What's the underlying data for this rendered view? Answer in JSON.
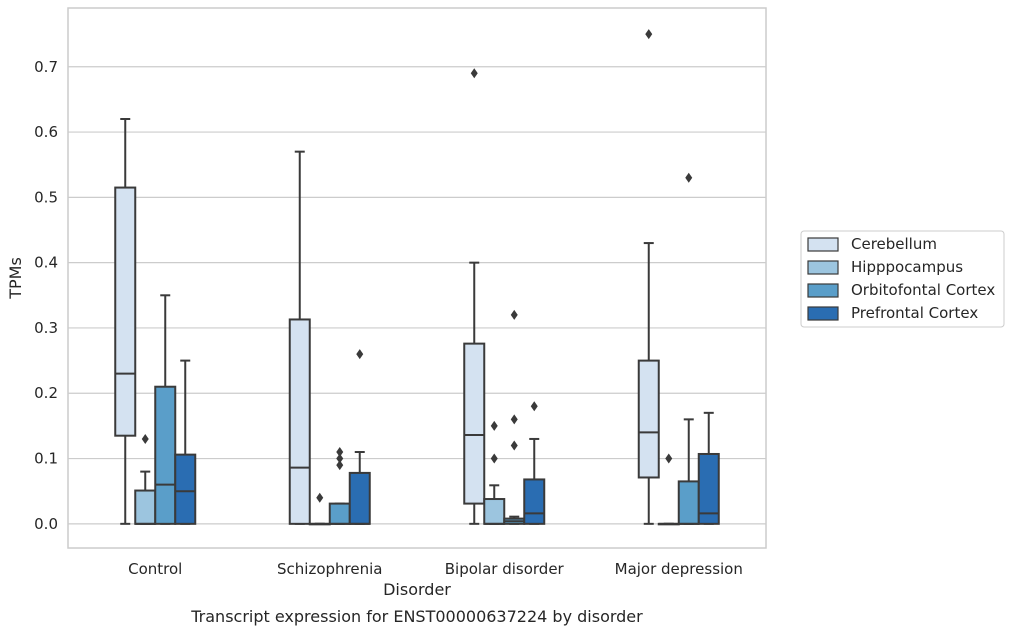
{
  "caption": "Transcript expression for ENST00000637224 by disorder",
  "chart_data": {
    "type": "boxplot",
    "xlabel": "Disorder",
    "ylabel": "TPMs",
    "ylim": [
      -0.037,
      0.79
    ],
    "yticks": [
      0.0,
      0.1,
      0.2,
      0.3,
      0.4,
      0.5,
      0.6,
      0.7
    ],
    "ytick_labels": [
      "0.0",
      "0.1",
      "0.2",
      "0.3",
      "0.4",
      "0.5",
      "0.6",
      "0.7"
    ],
    "grid": "horizontal",
    "legend_position": "right-outside",
    "categories": [
      "Control",
      "Schizophrenia",
      "Bipolar disorder",
      "Major depression"
    ],
    "series": [
      {
        "name": "Cerebellum",
        "color": "#d4e2f1",
        "boxes": [
          {
            "whislo": 0.0,
            "q1": 0.135,
            "med": 0.23,
            "q3": 0.515,
            "whishi": 0.62,
            "fliers": []
          },
          {
            "whislo": 0.0,
            "q1": 0.0,
            "med": 0.086,
            "q3": 0.313,
            "whishi": 0.57,
            "fliers": []
          },
          {
            "whislo": 0.0,
            "q1": 0.031,
            "med": 0.136,
            "q3": 0.276,
            "whishi": 0.4,
            "fliers": [
              0.69
            ]
          },
          {
            "whislo": 0.0,
            "q1": 0.071,
            "med": 0.14,
            "q3": 0.25,
            "whishi": 0.43,
            "fliers": [
              0.75
            ]
          }
        ]
      },
      {
        "name": "Hipppocampus",
        "color": "#9cc5df",
        "boxes": [
          {
            "whislo": 0.0,
            "q1": 0.0,
            "med": 0.0,
            "q3": 0.051,
            "whishi": 0.08,
            "fliers": [
              0.13
            ]
          },
          {
            "whislo": 0.0,
            "q1": 0.0,
            "med": 0.0,
            "q3": 0.0,
            "whishi": 0.0,
            "fliers": [
              0.04
            ]
          },
          {
            "whislo": 0.0,
            "q1": 0.0,
            "med": 0.0,
            "q3": 0.038,
            "whishi": 0.059,
            "fliers": [
              0.1,
              0.15
            ]
          },
          {
            "whislo": 0.0,
            "q1": 0.0,
            "med": 0.0,
            "q3": 0.0,
            "whishi": 0.0,
            "fliers": [
              0.1
            ]
          }
        ]
      },
      {
        "name": "Orbitofontal Cortex",
        "color": "#5a9ec9",
        "boxes": [
          {
            "whislo": 0.0,
            "q1": 0.0,
            "med": 0.06,
            "q3": 0.21,
            "whishi": 0.35,
            "fliers": []
          },
          {
            "whislo": 0.0,
            "q1": 0.0,
            "med": 0.0,
            "q3": 0.031,
            "whishi": 0.031,
            "fliers": [
              0.09,
              0.1,
              0.11
            ]
          },
          {
            "whislo": 0.0,
            "q1": 0.0,
            "med": 0.004,
            "q3": 0.008,
            "whishi": 0.011,
            "fliers": [
              0.12,
              0.16,
              0.32
            ]
          },
          {
            "whislo": 0.0,
            "q1": 0.0,
            "med": 0.0,
            "q3": 0.065,
            "whishi": 0.16,
            "fliers": [
              0.53
            ]
          }
        ]
      },
      {
        "name": "Prefrontal Cortex",
        "color": "#2a6db2",
        "boxes": [
          {
            "whislo": 0.0,
            "q1": 0.0,
            "med": 0.05,
            "q3": 0.106,
            "whishi": 0.25,
            "fliers": []
          },
          {
            "whislo": 0.0,
            "q1": 0.0,
            "med": 0.0,
            "q3": 0.078,
            "whishi": 0.11,
            "fliers": [
              0.26
            ]
          },
          {
            "whislo": 0.0,
            "q1": 0.0,
            "med": 0.016,
            "q3": 0.068,
            "whishi": 0.13,
            "fliers": [
              0.18
            ]
          },
          {
            "whislo": 0.0,
            "q1": 0.0,
            "med": 0.016,
            "q3": 0.107,
            "whishi": 0.17,
            "fliers": []
          }
        ]
      }
    ]
  }
}
